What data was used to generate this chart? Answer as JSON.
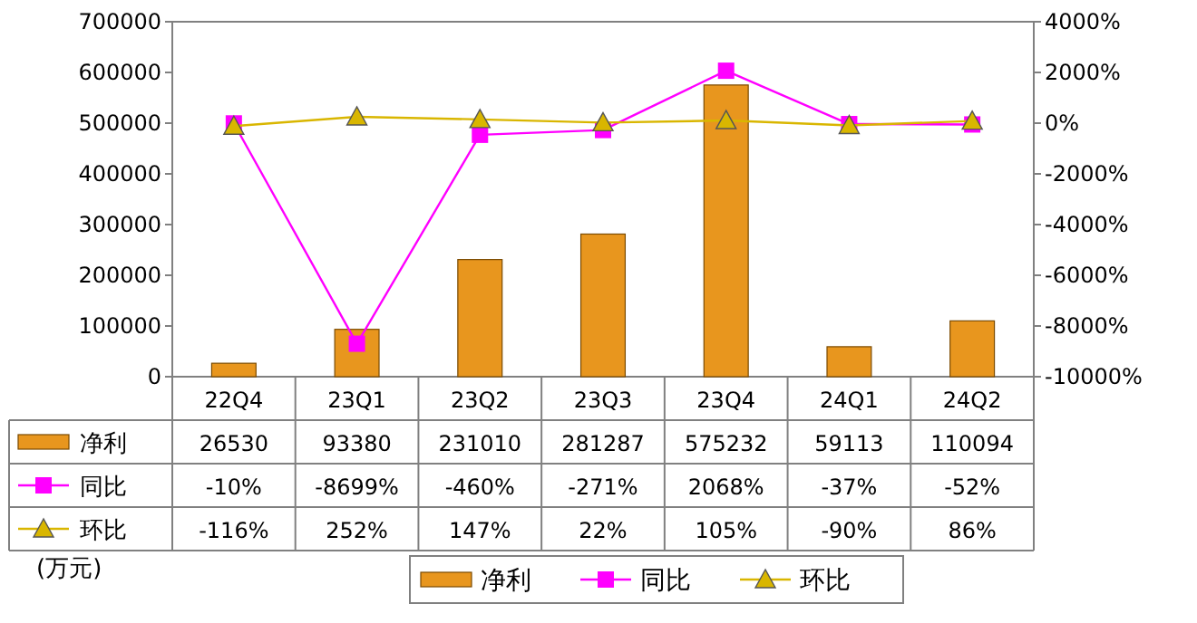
{
  "chart_data": {
    "type": "bar",
    "categories": [
      "22Q4",
      "23Q1",
      "23Q2",
      "23Q3",
      "23Q4",
      "24Q1",
      "24Q2"
    ],
    "ylim": [
      0,
      700000
    ],
    "yticks": [
      0,
      100000,
      200000,
      300000,
      400000,
      500000,
      600000,
      700000
    ],
    "y2lim": [
      -10000,
      4000
    ],
    "y2ticks": [
      {
        "value": -10000,
        "label": "-10000%"
      },
      {
        "value": -8000,
        "label": "-8000%"
      },
      {
        "value": -6000,
        "label": "-6000%"
      },
      {
        "value": -4000,
        "label": "-4000%"
      },
      {
        "value": -2000,
        "label": "-2000%"
      },
      {
        "value": 0,
        "label": "0%"
      },
      {
        "value": 2000,
        "label": "2000%"
      },
      {
        "value": 4000,
        "label": "4000%"
      }
    ],
    "series": [
      {
        "name": "净利",
        "color": "#e8961e",
        "values": [
          26530,
          93380,
          231010,
          281287,
          575232,
          59113,
          110094
        ],
        "value_labels": [
          "26530",
          "93380",
          "231010",
          "281287",
          "575232",
          "59113",
          "110094"
        ]
      },
      {
        "name": "同比",
        "type": "line",
        "axis": "y2",
        "marker": "square",
        "color": "#ff00ff",
        "values": [
          -10,
          -8699,
          -460,
          -271,
          2068,
          -37,
          -52
        ],
        "value_labels": [
          "-10%",
          "-8699%",
          "-460%",
          "-271%",
          "2068%",
          "-37%",
          "-52%"
        ]
      },
      {
        "name": "环比",
        "type": "line",
        "axis": "y2",
        "marker": "triangle",
        "color": "#d9b600",
        "values": [
          -116,
          252,
          147,
          22,
          105,
          -90,
          86
        ],
        "value_labels": [
          "-116%",
          "252%",
          "147%",
          "22%",
          "105%",
          "-90%",
          "86%"
        ]
      }
    ],
    "legend": "bottom",
    "annotations": [
      "(万元)"
    ]
  }
}
